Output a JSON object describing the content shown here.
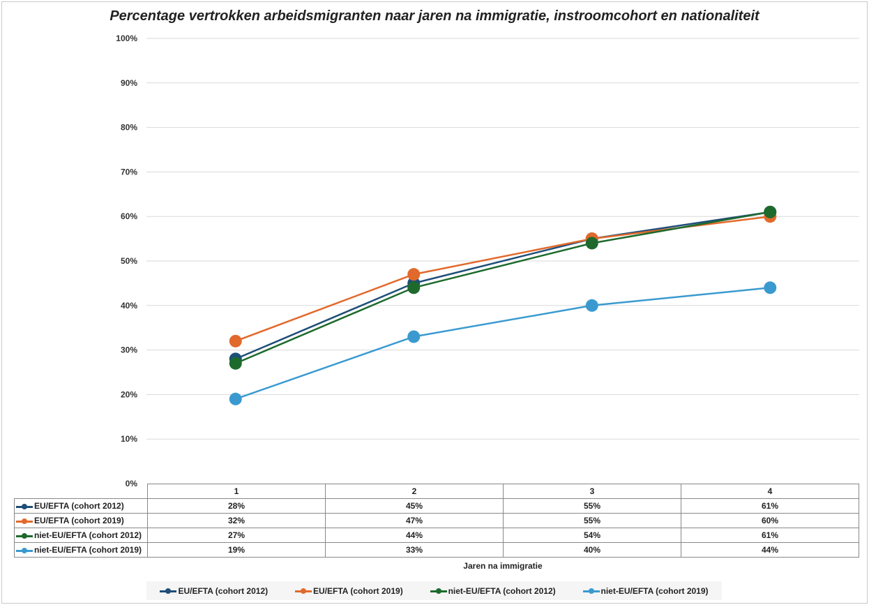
{
  "chart_data": {
    "type": "line",
    "title": "Percentage vertrokken arbeidsmigranten naar jaren na immigratie, instroomcohort en nationaliteit",
    "xlabel": "Jaren na immigratie",
    "ylabel": "",
    "categories": [
      "1",
      "2",
      "3",
      "4"
    ],
    "ylim": [
      0,
      100
    ],
    "yticks": [
      "0%",
      "10%",
      "20%",
      "30%",
      "40%",
      "50%",
      "60%",
      "70%",
      "80%",
      "90%",
      "100%"
    ],
    "grid": true,
    "legend": "bottom",
    "data_table": true,
    "series": [
      {
        "name": "EU/EFTA (cohort 2012)",
        "color": "#1f4e79",
        "values": [
          28,
          45,
          55,
          61
        ],
        "labels": [
          "28%",
          "45%",
          "55%",
          "61%"
        ]
      },
      {
        "name": "EU/EFTA (cohort 2019)",
        "color": "#e2692c",
        "values": [
          32,
          47,
          55,
          60
        ],
        "labels": [
          "32%",
          "47%",
          "55%",
          "60%"
        ]
      },
      {
        "name": "niet-EU/EFTA (cohort 2012)",
        "color": "#1d6a2c",
        "values": [
          27,
          44,
          54,
          61
        ],
        "labels": [
          "27%",
          "44%",
          "54%",
          "61%"
        ]
      },
      {
        "name": "niet-EU/EFTA (cohort 2019)",
        "color": "#3a9ad0",
        "values": [
          19,
          33,
          40,
          44
        ],
        "labels": [
          "19%",
          "33%",
          "40%",
          "44%"
        ]
      }
    ]
  }
}
